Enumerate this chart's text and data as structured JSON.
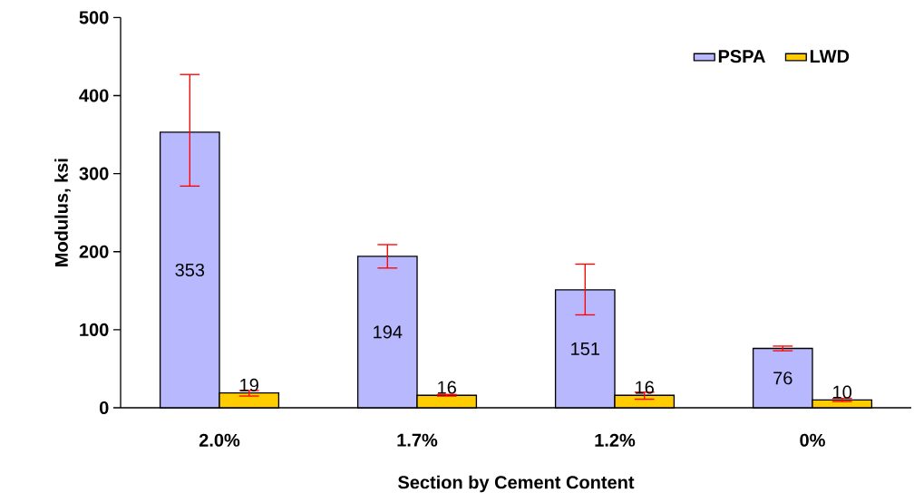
{
  "chart_data": {
    "type": "bar",
    "xlabel": "Section by Cement Content",
    "ylabel": "Modulus, ksi",
    "categories": [
      "2.0%",
      "1.7%",
      "1.2%",
      "0%"
    ],
    "series": [
      {
        "name": "PSPA",
        "color": "#b8b8ff",
        "values": [
          353,
          194,
          151,
          76
        ],
        "errors": [
          [
            284,
            427
          ],
          [
            179,
            209
          ],
          [
            119,
            184
          ],
          [
            73,
            79
          ]
        ]
      },
      {
        "name": "LWD",
        "color": "#ffcc00",
        "values": [
          19,
          16,
          16,
          10
        ],
        "errors": [
          [
            15,
            22
          ],
          [
            15,
            17
          ],
          [
            11,
            20
          ],
          [
            8,
            12
          ]
        ]
      }
    ],
    "ylim": [
      0,
      500
    ],
    "yticks": [
      0,
      100,
      200,
      300,
      400,
      500
    ],
    "data_labels": true,
    "legend": "top right"
  }
}
